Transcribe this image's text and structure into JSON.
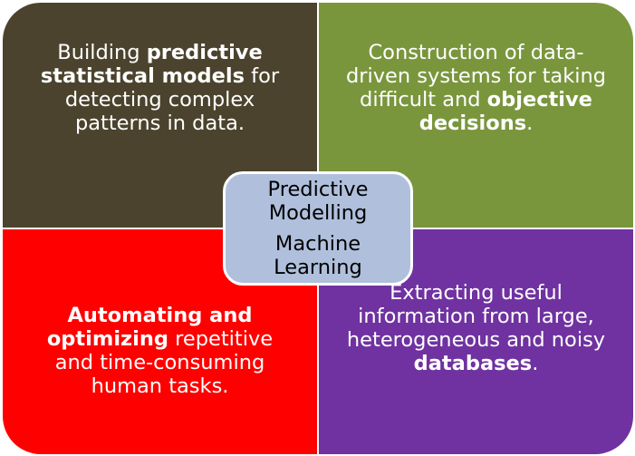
{
  "colors": {
    "top_left": "#4b432d",
    "top_right": "#7a963d",
    "bottom_left": "#ff0000",
    "bottom_right": "#6f32a0",
    "center": "#b0c0dc"
  },
  "center": {
    "line1": "Predictive",
    "line2": "Modelling",
    "line3": "Machine",
    "line4": "Learning"
  },
  "quadrants": {
    "top_left": {
      "pre": "Building ",
      "bold": "predictive statistical models",
      "post": " for detecting complex patterns in data."
    },
    "top_right": {
      "pre": "Construction of data-driven systems for taking difficult and ",
      "bold": "objective decisions",
      "post": "."
    },
    "bottom_left": {
      "pre": "",
      "bold": "Automating and optimizing",
      "post": " repetitive and time-consuming human tasks."
    },
    "bottom_right": {
      "pre": "Extracting useful information from large, heterogeneous and noisy ",
      "bold": "databases",
      "post": "."
    }
  }
}
